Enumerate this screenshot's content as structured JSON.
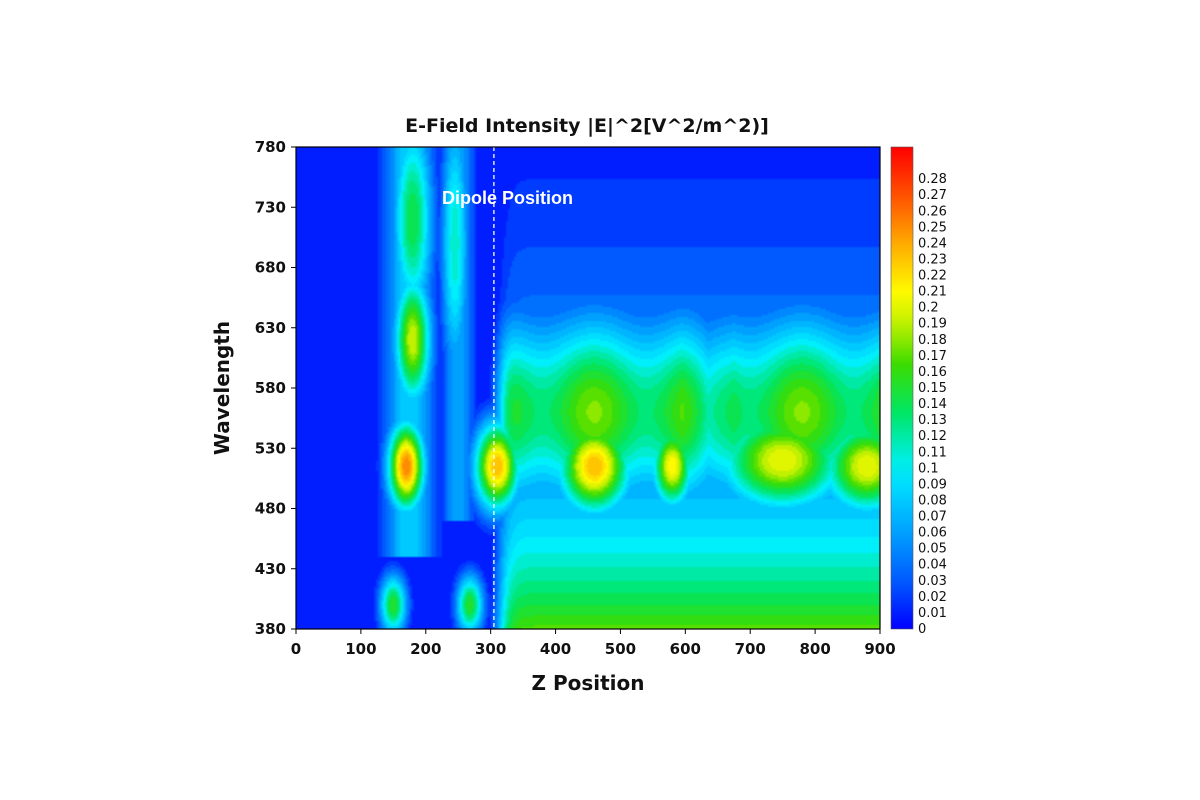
{
  "chart_data": {
    "type": "heatmap",
    "title": "E-Field Intensity |E|^2[V^2/m^2)]",
    "xlabel": "Z Position",
    "ylabel": "Wavelength",
    "xlim": [
      0,
      900
    ],
    "ylim": [
      380,
      780
    ],
    "xticks": [
      "0",
      "100",
      "200",
      "300",
      "400",
      "500",
      "600",
      "700",
      "800",
      "900"
    ],
    "yticks": [
      "380",
      "430",
      "480",
      "530",
      "580",
      "630",
      "680",
      "730",
      "780"
    ],
    "colorbar": {
      "min": 0,
      "max": 0.3,
      "labels": [
        "0",
        "0.01",
        "0.02",
        "0.03",
        "0.04",
        "0.05",
        "0.06",
        "0.07",
        "0.08",
        "0.09",
        "0.1",
        "0.11",
        "0.12",
        "0.13",
        "0.14",
        "0.15",
        "0.16",
        "0.17",
        "0.18",
        "0.19",
        "0.2",
        "0.21",
        "0.22",
        "0.23",
        "0.24",
        "0.25",
        "0.26",
        "0.27",
        "0.28"
      ]
    },
    "dipole_line": {
      "x": 305,
      "label": "Dipole Position"
    },
    "features": [
      {
        "z": 150,
        "wavelength": 400,
        "intensity": 0.16,
        "wz": 15,
        "ww": 18
      },
      {
        "z": 268,
        "wavelength": 400,
        "intensity": 0.16,
        "wz": 15,
        "ww": 18
      },
      {
        "z": 170,
        "wavelength": 515,
        "intensity": 0.26,
        "wz": 20,
        "ww": 26
      },
      {
        "z": 180,
        "wavelength": 620,
        "intensity": 0.2,
        "wz": 20,
        "ww": 38
      },
      {
        "z": 180,
        "wavelength": 720,
        "intensity": 0.15,
        "wz": 22,
        "ww": 60
      },
      {
        "z": 245,
        "wavelength": 700,
        "intensity": 0.12,
        "wz": 15,
        "ww": 80
      },
      {
        "z": 310,
        "wavelength": 515,
        "intensity": 0.24,
        "wz": 25,
        "ww": 26
      },
      {
        "z": 460,
        "wavelength": 515,
        "intensity": 0.24,
        "wz": 40,
        "ww": 28
      },
      {
        "z": 580,
        "wavelength": 515,
        "intensity": 0.22,
        "wz": 22,
        "ww": 24
      },
      {
        "z": 750,
        "wavelength": 520,
        "intensity": 0.21,
        "wz": 70,
        "ww": 30
      },
      {
        "z": 880,
        "wavelength": 515,
        "intensity": 0.21,
        "wz": 50,
        "ww": 28
      }
    ]
  }
}
